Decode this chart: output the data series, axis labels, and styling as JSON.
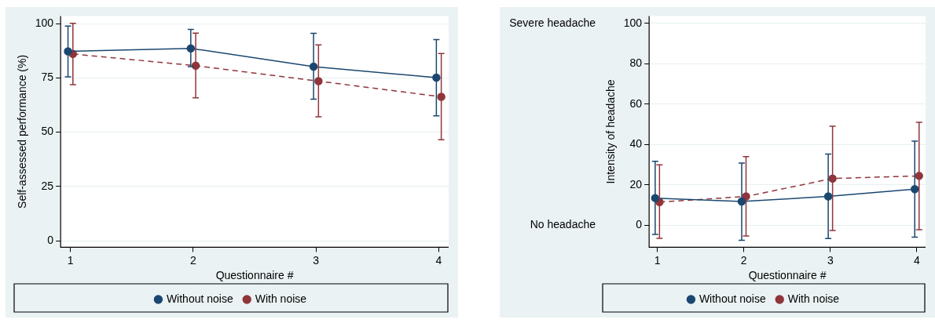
{
  "chart_data": [
    {
      "type": "line",
      "xlabel": "Questionnaire #",
      "ylabel": "Self-assessed performance (%)",
      "xlim": [
        0.92,
        4.08
      ],
      "xticks": [
        1,
        2,
        3,
        4
      ],
      "ylim": [
        -3,
        103.5
      ],
      "yticks": [
        0,
        25,
        50,
        75,
        100
      ],
      "grid": "y",
      "legend": "bottom",
      "marker": "circle",
      "series": [
        {
          "name": "Without noise",
          "color": "#1a476f",
          "line_style": "solid",
          "x": [
            0.98,
            1.98,
            2.98,
            3.98
          ],
          "values": [
            87.2,
            88.6,
            80.2,
            75.1
          ],
          "errors": [
            [
              75.5,
              98.9
            ],
            [
              80.2,
              97.3
            ],
            [
              65.2,
              95.5
            ],
            [
              57.5,
              92.6
            ]
          ]
        },
        {
          "name": "With noise",
          "color": "#90353b",
          "line_style": "dashed",
          "x": [
            1.02,
            2.02,
            3.02,
            4.02
          ],
          "values": [
            86.0,
            80.6,
            73.5,
            66.3
          ],
          "errors": [
            [
              71.9,
              100.1
            ],
            [
              65.8,
              95.6
            ],
            [
              57.1,
              90.2
            ],
            [
              46.5,
              86.2
            ]
          ]
        }
      ]
    },
    {
      "type": "line",
      "xlabel": "Questionnaire #",
      "ylabel": "Intensity of headache",
      "xlim": [
        0.905,
        4.1
      ],
      "xticks": [
        1,
        2,
        3,
        4
      ],
      "ylim": [
        -11,
        103.7
      ],
      "yticks": [
        0,
        20,
        40,
        60,
        80,
        100
      ],
      "grid": "y",
      "legend": "bottom",
      "marker": "circle",
      "annotations": [
        "Severe headache",
        "No headache"
      ],
      "series": [
        {
          "name": "Without noise",
          "color": "#1a476f",
          "line_style": "solid",
          "x": [
            0.975,
            1.975,
            2.975,
            3.975
          ],
          "values": [
            13.4,
            11.7,
            14.2,
            17.8
          ],
          "errors": [
            [
              -4.6,
              31.6
            ],
            [
              -7.5,
              30.8
            ],
            [
              -6.7,
              35.2
            ],
            [
              -6.0,
              41.6
            ]
          ]
        },
        {
          "name": "With noise",
          "color": "#90353b",
          "line_style": "dashed",
          "x": [
            1.025,
            2.025,
            3.025,
            4.025
          ],
          "values": [
            11.4,
            14.2,
            23.1,
            24.4
          ],
          "errors": [
            [
              -6.6,
              29.9
            ],
            [
              -5.4,
              34.0
            ],
            [
              -2.7,
              49.0
            ],
            [
              -2.3,
              51.0
            ]
          ]
        }
      ]
    }
  ]
}
